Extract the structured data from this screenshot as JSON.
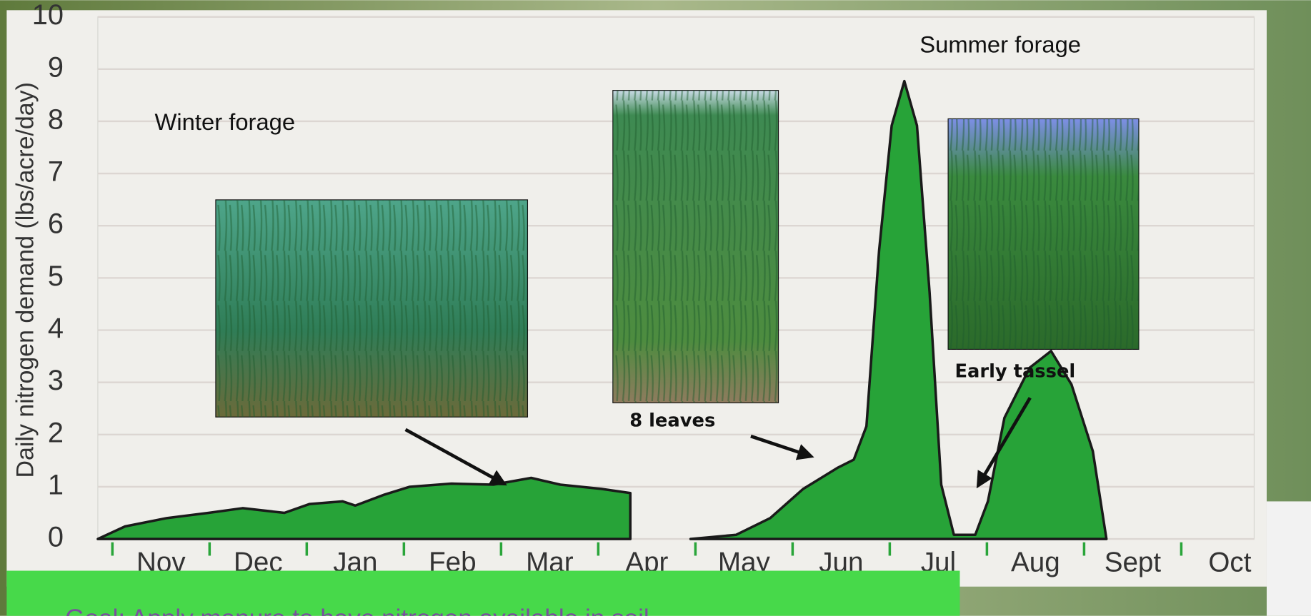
{
  "chart_data": {
    "type": "area",
    "y_label": "Daily nitrogen demand (lbs/acre/day)",
    "categories": [
      "Nov",
      "Dec",
      "Jan",
      "Feb",
      "Mar",
      "Apr",
      "May",
      "Jun",
      "Jul",
      "Aug",
      "Sept",
      "Oct"
    ],
    "x": [
      -0.15,
      0.13,
      0.56,
      0.99,
      1.34,
      1.77,
      2.03,
      2.37,
      2.5,
      2.8,
      3.06,
      3.49,
      3.92,
      4.31,
      4.61,
      5.03,
      5.33,
      5.33,
      5.6,
      5.95,
      6.42,
      6.77,
      7.11,
      7.46,
      7.63,
      7.76,
      7.89,
      8.02,
      8.15,
      8.28,
      8.41,
      8.53,
      8.66,
      8.88,
      9.01,
      9.18,
      9.44,
      9.66,
      9.87,
      10.09,
      10.23
    ],
    "values": [
      0,
      0.24,
      0.4,
      0.5,
      0.59,
      0.5,
      0.67,
      0.72,
      0.64,
      0.85,
      1.0,
      1.06,
      1.04,
      1.17,
      1.04,
      0.96,
      0.88,
      0,
      null,
      0,
      0.08,
      0.4,
      0.96,
      1.36,
      1.52,
      2.16,
      5.52,
      7.92,
      8.77,
      7.92,
      4.72,
      1.04,
      0.08,
      0.08,
      0.72,
      2.32,
      3.28,
      3.6,
      2.96,
      1.68,
      0
    ],
    "color": "#27a338",
    "xlim": [
      -0.15,
      11.75
    ],
    "ylim": [
      0,
      10
    ],
    "yticks": [
      0,
      1,
      2,
      3,
      4,
      5,
      6,
      7,
      8,
      9,
      10
    ],
    "grid": true,
    "annotations": [
      "Winter forage",
      "Summer forage",
      "8 leaves",
      "Early tassel"
    ]
  },
  "banner": "Goal: Apply manure to have nitrogen available in soil"
}
